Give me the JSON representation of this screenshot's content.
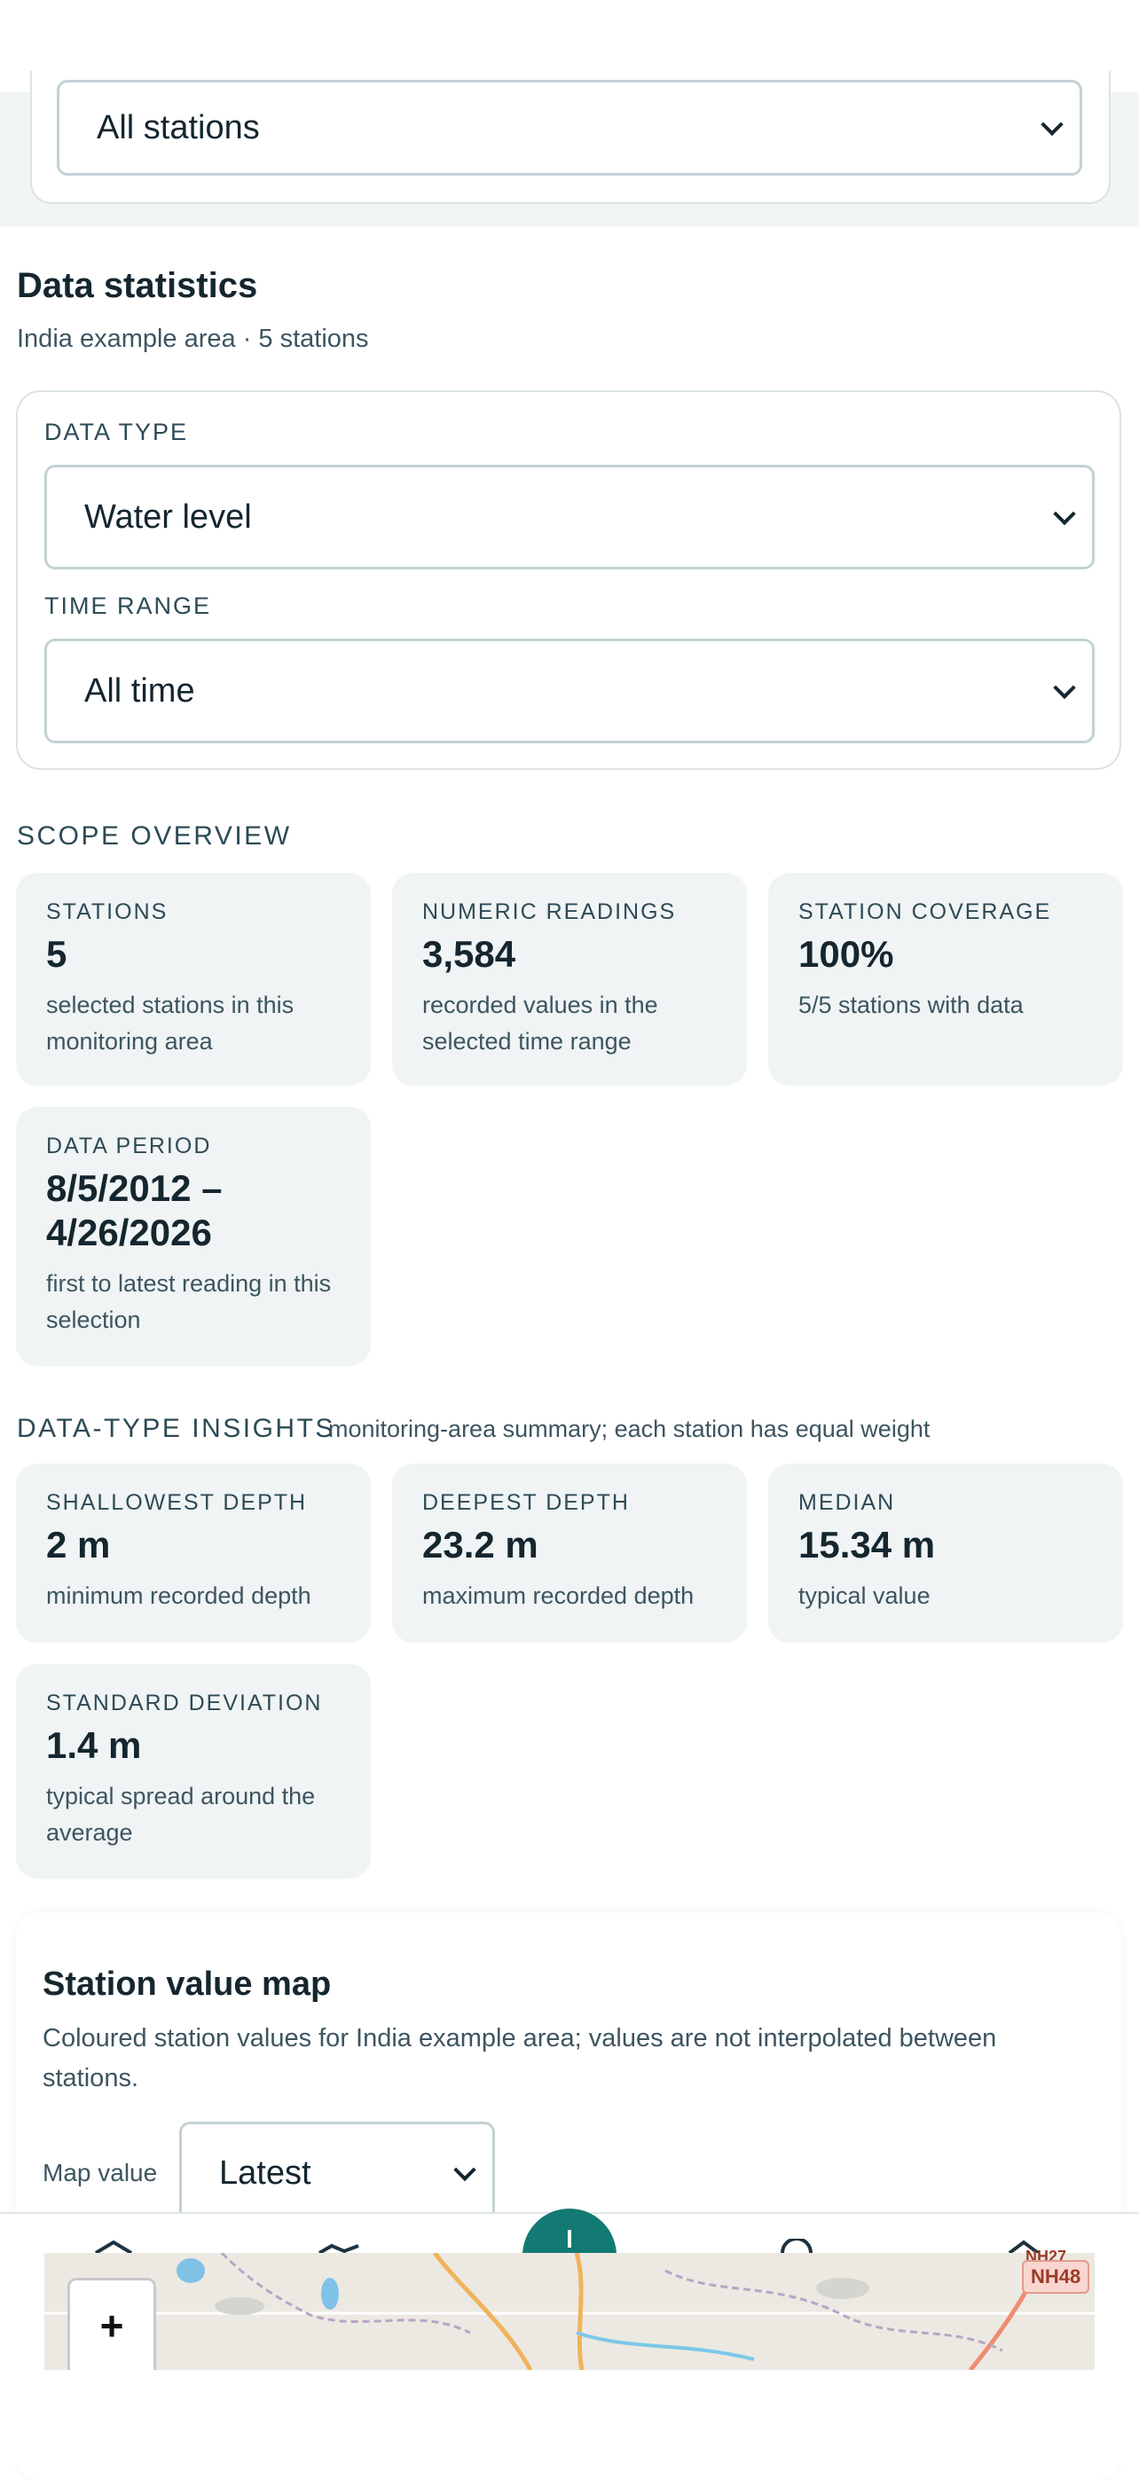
{
  "filters_top": {
    "station_select": "All stations"
  },
  "stats_header": {
    "title": "Data statistics",
    "subtitle": "India example area · 5 stations"
  },
  "filters": {
    "data_type_label": "DATA TYPE",
    "data_type_value": "Water level",
    "time_range_label": "TIME RANGE",
    "time_range_value": "All time"
  },
  "scope": {
    "title": "SCOPE OVERVIEW",
    "cards": [
      {
        "title": "STATIONS",
        "value": "5",
        "desc": "selected stations in this monitoring area"
      },
      {
        "title": "NUMERIC READINGS",
        "value": "3,584",
        "desc": "recorded values in the selected time range"
      },
      {
        "title": "STATION COVERAGE",
        "value": "100%",
        "desc": "5/5 stations with data"
      },
      {
        "title": "DATA PERIOD",
        "value": "8/5/2012 – 4/26/2026",
        "desc": "first to latest reading in this selection"
      }
    ]
  },
  "insights": {
    "title": "DATA-TYPE INSIGHTS",
    "note": "monitoring-area summary; each station has equal weight",
    "cards": [
      {
        "title": "SHALLOWEST DEPTH",
        "value": "2 m",
        "desc": "minimum recorded depth"
      },
      {
        "title": "DEEPEST DEPTH",
        "value": "23.2 m",
        "desc": "maximum recorded depth"
      },
      {
        "title": "MEDIAN",
        "value": "15.34 m",
        "desc": "typical value"
      },
      {
        "title": "STANDARD DEVIATION",
        "value": "1.4 m",
        "desc": "typical spread around the average"
      }
    ]
  },
  "map": {
    "title": "Station value map",
    "desc": "Coloured station values for India example area; values are not interpolated between stations.",
    "value_label": "Map value",
    "value_select": "Latest",
    "zoom_in": "+",
    "road_label": "NH48",
    "road_label_partial": "NH27"
  },
  "colors": {
    "accent": "#127a72",
    "card_bg": "#f0f4f4",
    "text_dark": "#15262f"
  },
  "icons": [
    "chevron-down-icon",
    "home-icon",
    "map-icon",
    "add-icon",
    "search-icon",
    "settings-icon"
  ]
}
